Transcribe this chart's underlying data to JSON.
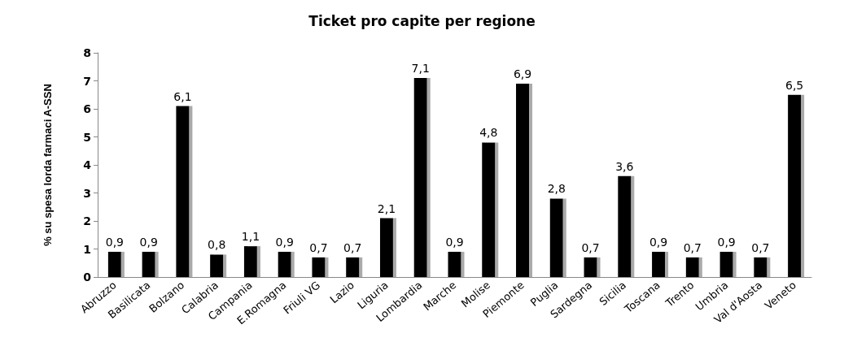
{
  "chart_data": {
    "type": "bar",
    "title": "Ticket pro capite per regione",
    "ylabel": "% su spesa lorda farmaci A-SSN",
    "categories": [
      "Abruzzo",
      "Basilicata",
      "Bolzano",
      "Calabria",
      "Campania",
      "E.Romagna",
      "Friuli VG",
      "Lazio",
      "Liguria",
      "Lombardia",
      "Marche",
      "Molise",
      "Piemonte",
      "Puglia",
      "Sardegna",
      "Sicilia",
      "Toscana",
      "Trento",
      "Umbria",
      "Val d'Aosta",
      "Veneto"
    ],
    "values": [
      0.9,
      0.9,
      6.1,
      0.8,
      1.1,
      0.9,
      0.7,
      0.7,
      2.1,
      7.1,
      0.9,
      4.8,
      6.9,
      2.8,
      0.7,
      3.6,
      0.9,
      0.7,
      0.9,
      0.7,
      6.5
    ],
    "value_labels": [
      "0,9",
      "0,9",
      "6,1",
      "0,8",
      "1,1",
      "0,9",
      "0,7",
      "0,7",
      "2,1",
      "7,1",
      "0,9",
      "4,8",
      "6,9",
      "2,8",
      "0,7",
      "3,6",
      "0,9",
      "0,7",
      "0,9",
      "0,7",
      "6,5"
    ],
    "color": "#000000",
    "ylim": [
      0,
      8
    ],
    "yticks": [
      0,
      1,
      2,
      3,
      4,
      5,
      6,
      7,
      8
    ],
    "grid": false
  }
}
